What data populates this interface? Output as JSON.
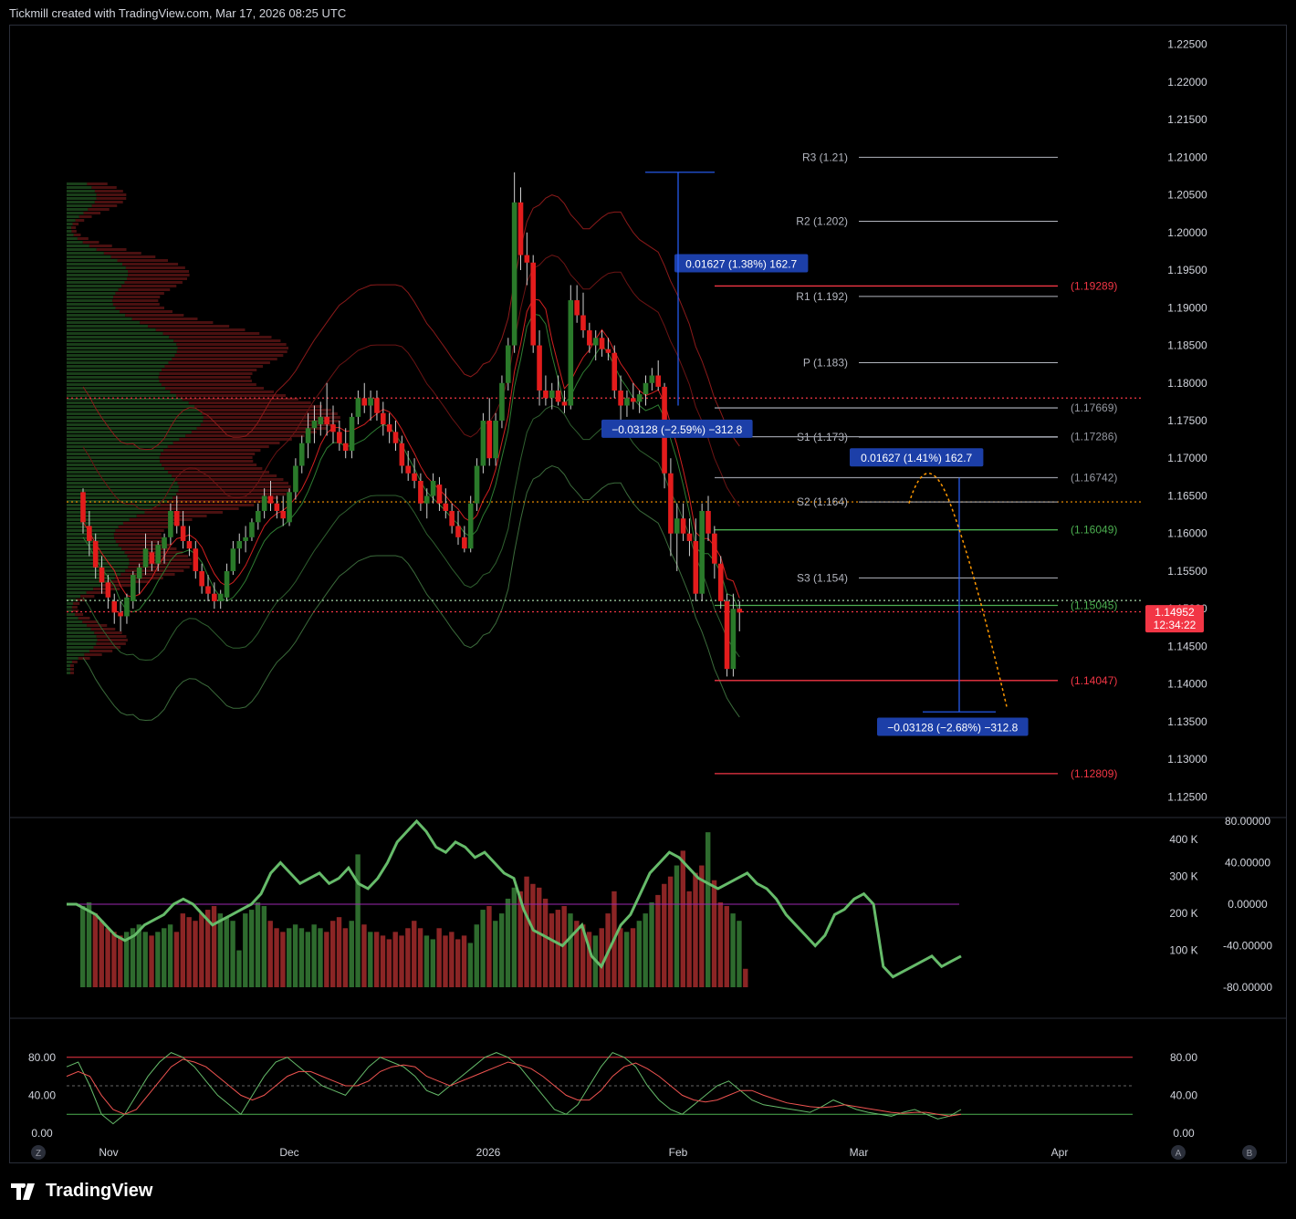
{
  "header": {
    "caption": "Tickmill created with TradingView.com, Mar 17, 2026 08:25 UTC"
  },
  "brand": {
    "name": "TradingView"
  },
  "colors": {
    "up": "#2a7a2a",
    "down": "#e31c1c",
    "bg": "#000000",
    "grid": "#1a1a1a",
    "measure": "#1c3fa8"
  },
  "icons": [
    "tradingview-logo-icon",
    "z-button-icon",
    "a-button-icon",
    "b-button-icon"
  ],
  "bottom_buttons": {
    "left": "Z",
    "a": "A",
    "b": "B"
  },
  "chart_data": [
    {
      "type": "candlestick",
      "symbol_panel": "main",
      "yticks": [
        "1.22500",
        "1.22000",
        "1.21500",
        "1.21000",
        "1.20500",
        "1.20000",
        "1.19500",
        "1.19000",
        "1.18500",
        "1.18000",
        "1.17500",
        "1.17000",
        "1.16500",
        "1.16000",
        "1.15500",
        "1.15000",
        "1.14500",
        "1.14000",
        "1.13500",
        "1.13000",
        "1.12500"
      ],
      "ylim": [
        1.1225,
        1.2275
      ],
      "xticks": [
        "Nov",
        "Dec",
        "2026",
        "Feb",
        "Mar",
        "Apr"
      ],
      "last_price": "1.14952",
      "countdown": "12:34:22",
      "candles": [
        [
          1.1655,
          1.166,
          1.16,
          1.1615
        ],
        [
          1.161,
          1.163,
          1.157,
          1.159
        ],
        [
          1.159,
          1.16,
          1.154,
          1.1555
        ],
        [
          1.1555,
          1.157,
          1.152,
          1.1535
        ],
        [
          1.1535,
          1.1545,
          1.15,
          1.1515
        ],
        [
          1.151,
          1.152,
          1.148,
          1.1495
        ],
        [
          1.1495,
          1.151,
          1.147,
          1.149
        ],
        [
          1.149,
          1.152,
          1.148,
          1.1515
        ],
        [
          1.151,
          1.155,
          1.15,
          1.1545
        ],
        [
          1.154,
          1.156,
          1.152,
          1.1555
        ],
        [
          1.1555,
          1.16,
          1.1545,
          1.158
        ],
        [
          1.1575,
          1.159,
          1.155,
          1.156
        ],
        [
          1.156,
          1.159,
          1.155,
          1.1585
        ],
        [
          1.158,
          1.16,
          1.156,
          1.1595
        ],
        [
          1.1595,
          1.164,
          1.1585,
          1.163
        ],
        [
          1.163,
          1.165,
          1.16,
          1.161
        ],
        [
          1.161,
          1.163,
          1.158,
          1.159
        ],
        [
          1.159,
          1.161,
          1.157,
          1.158
        ],
        [
          1.158,
          1.159,
          1.154,
          1.155
        ],
        [
          1.155,
          1.156,
          1.152,
          1.153
        ],
        [
          1.153,
          1.1545,
          1.151,
          1.152
        ],
        [
          1.152,
          1.1535,
          1.15,
          1.151
        ],
        [
          1.151,
          1.1525,
          1.15,
          1.152
        ],
        [
          1.1515,
          1.156,
          1.151,
          1.155
        ],
        [
          1.155,
          1.159,
          1.1545,
          1.158
        ],
        [
          1.158,
          1.16,
          1.156,
          1.159
        ],
        [
          1.159,
          1.161,
          1.1575,
          1.1595
        ],
        [
          1.1595,
          1.162,
          1.159,
          1.1615
        ],
        [
          1.1615,
          1.164,
          1.1605,
          1.163
        ],
        [
          1.163,
          1.166,
          1.162,
          1.165
        ],
        [
          1.165,
          1.167,
          1.163,
          1.164
        ],
        [
          1.164,
          1.165,
          1.162,
          1.163
        ],
        [
          1.163,
          1.165,
          1.161,
          1.162
        ],
        [
          1.1615,
          1.166,
          1.161,
          1.1655
        ],
        [
          1.1655,
          1.17,
          1.1645,
          1.169
        ],
        [
          1.169,
          1.173,
          1.168,
          1.172
        ],
        [
          1.172,
          1.176,
          1.17,
          1.174
        ],
        [
          1.174,
          1.177,
          1.172,
          1.175
        ],
        [
          1.1745,
          1.1775,
          1.173,
          1.1755
        ],
        [
          1.1755,
          1.18,
          1.173,
          1.1745
        ],
        [
          1.1745,
          1.177,
          1.172,
          1.1735
        ],
        [
          1.1735,
          1.175,
          1.171,
          1.172
        ],
        [
          1.172,
          1.174,
          1.17,
          1.171
        ],
        [
          1.171,
          1.176,
          1.17,
          1.1755
        ],
        [
          1.1755,
          1.179,
          1.1745,
          1.178
        ],
        [
          1.178,
          1.18,
          1.176,
          1.177
        ],
        [
          1.177,
          1.179,
          1.175,
          1.178
        ],
        [
          1.178,
          1.179,
          1.175,
          1.176
        ],
        [
          1.176,
          1.1775,
          1.173,
          1.1745
        ],
        [
          1.1745,
          1.176,
          1.172,
          1.1735
        ],
        [
          1.1735,
          1.175,
          1.171,
          1.172
        ],
        [
          1.172,
          1.173,
          1.168,
          1.169
        ],
        [
          1.169,
          1.171,
          1.167,
          1.168
        ],
        [
          1.168,
          1.17,
          1.166,
          1.167
        ],
        [
          1.167,
          1.168,
          1.163,
          1.164
        ],
        [
          1.164,
          1.166,
          1.162,
          1.165
        ],
        [
          1.165,
          1.168,
          1.164,
          1.167
        ],
        [
          1.1665,
          1.1675,
          1.163,
          1.164
        ],
        [
          1.164,
          1.166,
          1.162,
          1.163
        ],
        [
          1.163,
          1.164,
          1.16,
          1.161
        ],
        [
          1.161,
          1.163,
          1.1585,
          1.1595
        ],
        [
          1.1595,
          1.161,
          1.1575,
          1.158
        ],
        [
          1.158,
          1.165,
          1.1575,
          1.164
        ],
        [
          1.164,
          1.17,
          1.163,
          1.169
        ],
        [
          1.169,
          1.176,
          1.168,
          1.175
        ],
        [
          1.175,
          1.178,
          1.169,
          1.17
        ],
        [
          1.17,
          1.176,
          1.169,
          1.175
        ],
        [
          1.175,
          1.181,
          1.174,
          1.18
        ],
        [
          1.18,
          1.186,
          1.179,
          1.185
        ],
        [
          1.185,
          1.208,
          1.184,
          1.204
        ],
        [
          1.204,
          1.206,
          1.195,
          1.197
        ],
        [
          1.197,
          1.2,
          1.193,
          1.196
        ],
        [
          1.196,
          1.197,
          1.184,
          1.185
        ],
        [
          1.185,
          1.187,
          1.177,
          1.179
        ],
        [
          1.179,
          1.181,
          1.177,
          1.178
        ],
        [
          1.178,
          1.18,
          1.1765,
          1.179
        ],
        [
          1.179,
          1.181,
          1.177,
          1.1775
        ],
        [
          1.1775,
          1.179,
          1.176,
          1.177
        ],
        [
          1.177,
          1.193,
          1.1765,
          1.191
        ],
        [
          1.191,
          1.193,
          1.188,
          1.189
        ],
        [
          1.189,
          1.192,
          1.186,
          1.187
        ],
        [
          1.187,
          1.188,
          1.184,
          1.185
        ],
        [
          1.185,
          1.187,
          1.183,
          1.186
        ],
        [
          1.186,
          1.187,
          1.1835,
          1.1845
        ],
        [
          1.1845,
          1.186,
          1.183,
          1.184
        ],
        [
          1.184,
          1.185,
          1.178,
          1.179
        ],
        [
          1.179,
          1.181,
          1.175,
          1.177
        ],
        [
          1.177,
          1.179,
          1.1755,
          1.178
        ],
        [
          1.178,
          1.18,
          1.1765,
          1.1775
        ],
        [
          1.1775,
          1.179,
          1.176,
          1.1785
        ],
        [
          1.1785,
          1.181,
          1.177,
          1.18
        ],
        [
          1.18,
          1.182,
          1.179,
          1.181
        ],
        [
          1.181,
          1.183,
          1.179,
          1.1795
        ],
        [
          1.1795,
          1.18,
          1.166,
          1.168
        ],
        [
          1.168,
          1.17,
          1.157,
          1.16
        ],
        [
          1.16,
          1.164,
          1.155,
          1.162
        ],
        [
          1.162,
          1.164,
          1.159,
          1.16
        ],
        [
          1.16,
          1.162,
          1.157,
          1.159
        ],
        [
          1.159,
          1.162,
          1.151,
          1.152
        ],
        [
          1.152,
          1.164,
          1.151,
          1.163
        ],
        [
          1.163,
          1.165,
          1.159,
          1.16
        ],
        [
          1.16,
          1.161,
          1.154,
          1.156
        ],
        [
          1.156,
          1.157,
          1.15,
          1.151
        ],
        [
          1.151,
          1.152,
          1.141,
          1.142
        ],
        [
          1.142,
          1.152,
          1.141,
          1.15
        ],
        [
          1.15,
          1.151,
          1.147,
          1.1495
        ]
      ],
      "pivots": [
        {
          "label": "R3 (1.21)",
          "value": 1.21
        },
        {
          "label": "R2 (1.202)",
          "value": 1.2015
        },
        {
          "label": "R1 (1.192)",
          "value": 1.1915
        },
        {
          "label": "P (1.183)",
          "value": 1.1827
        },
        {
          "label": "S1 (1.173)",
          "value": 1.1728
        },
        {
          "label": "S2 (1.164)",
          "value": 1.1642
        },
        {
          "label": "S3 (1.154)",
          "value": 1.1541
        }
      ],
      "levels": [
        {
          "label": "(1.19289)",
          "value": 1.19289,
          "color": "#f23645"
        },
        {
          "label": "(1.17669)",
          "value": 1.17669,
          "color": "#9598a1"
        },
        {
          "label": "(1.17286)",
          "value": 1.17286,
          "color": "#9598a1"
        },
        {
          "label": "(1.16742)",
          "value": 1.16742,
          "color": "#9598a1"
        },
        {
          "label": "(1.16049)",
          "value": 1.16049,
          "color": "#4caf50"
        },
        {
          "label": "(1.15045)",
          "value": 1.15045,
          "color": "#4caf50"
        },
        {
          "label": "(1.14047)",
          "value": 1.14047,
          "color": "#f23645"
        },
        {
          "label": "(1.12809)",
          "value": 1.12809,
          "color": "#f23645"
        }
      ],
      "dotted_lines": [
        {
          "value": 1.178,
          "color": "#f23645"
        },
        {
          "value": 1.1642,
          "color": "#ff9800"
        },
        {
          "value": 1.1511,
          "color": "#a5d6a7"
        },
        {
          "value": 1.1496,
          "color": "#f23645"
        }
      ],
      "measures": [
        {
          "label": "0.01627 (1.38%) 162.7",
          "value": 1.1958
        },
        {
          "label": "−0.03128 (−2.59%) −312.8",
          "value": 1.1738
        },
        {
          "label": "0.01627 (1.41%) 162.7",
          "value": 1.17
        },
        {
          "label": "−0.03128 (−2.68%) −312.8",
          "value": 1.1342
        }
      ]
    },
    {
      "type": "bar+line",
      "panel": "volume",
      "volume_ticks": [
        "400 K",
        "300 K",
        "200 K",
        "100 K"
      ],
      "osc_ticks": [
        "80.00000",
        "40.00000",
        "0.00000",
        "-40.00000",
        "-80.00000"
      ],
      "volume": [
        220,
        230,
        200,
        180,
        160,
        150,
        140,
        150,
        160,
        170,
        150,
        140,
        150,
        160,
        170,
        150,
        200,
        190,
        180,
        200,
        210,
        220,
        200,
        190,
        180,
        100,
        200,
        210,
        230,
        220,
        180,
        160,
        150,
        160,
        170,
        160,
        150,
        170,
        160,
        150,
        180,
        190,
        160,
        180,
        360,
        170,
        150,
        150,
        140,
        130,
        150,
        140,
        160,
        180,
        160,
        140,
        130,
        160,
        140,
        150,
        130,
        140,
        120,
        170,
        210,
        220,
        180,
        200,
        240,
        270,
        260,
        300,
        280,
        270,
        240,
        200,
        210,
        220,
        200,
        180,
        170,
        150,
        140,
        160,
        200,
        260,
        160,
        150,
        160,
        180,
        200,
        230,
        250,
        280,
        300,
        330,
        370,
        260,
        310,
        330,
        420,
        290,
        230,
        220,
        200,
        180,
        50
      ],
      "volume_up": [
        true,
        true,
        false,
        false,
        false,
        false,
        false,
        true,
        true,
        true,
        true,
        false,
        true,
        true,
        true,
        false,
        false,
        false,
        false,
        false,
        false,
        false,
        true,
        true,
        true,
        true,
        true,
        true,
        true,
        true,
        false,
        false,
        false,
        true,
        true,
        true,
        true,
        true,
        true,
        false,
        false,
        false,
        false,
        true,
        true,
        false,
        true,
        false,
        false,
        false,
        false,
        false,
        false,
        false,
        false,
        true,
        true,
        false,
        false,
        false,
        false,
        false,
        true,
        true,
        true,
        false,
        true,
        true,
        true,
        true,
        false,
        false,
        false,
        false,
        false,
        false,
        false,
        false,
        true,
        false,
        false,
        false,
        true,
        false,
        false,
        false,
        false,
        true,
        false,
        true,
        true,
        true,
        false,
        false,
        false,
        true,
        false,
        false,
        false,
        false,
        true,
        false,
        false,
        false,
        true,
        true,
        false
      ],
      "oscillator": [
        0,
        0,
        -5,
        -10,
        -20,
        -30,
        -35,
        -30,
        -20,
        -15,
        -10,
        0,
        5,
        0,
        -10,
        -20,
        -15,
        -10,
        -5,
        0,
        10,
        30,
        40,
        30,
        20,
        25,
        30,
        20,
        25,
        35,
        20,
        15,
        25,
        40,
        60,
        70,
        80,
        70,
        55,
        50,
        60,
        55,
        45,
        50,
        40,
        30,
        25,
        -5,
        -25,
        -30,
        -35,
        -40,
        -30,
        -20,
        -50,
        -60,
        -40,
        -20,
        -10,
        10,
        30,
        40,
        50,
        45,
        35,
        25,
        20,
        15,
        20,
        25,
        30,
        20,
        15,
        5,
        -10,
        -20,
        -30,
        -40,
        -30,
        -10,
        -5,
        5,
        10,
        0,
        -60,
        -70,
        -65,
        -60,
        -55,
        -50,
        -60,
        -55,
        -50
      ]
    },
    {
      "type": "line",
      "panel": "stochastic",
      "yticks_left": [
        "80.00",
        "40.00",
        "0.00"
      ],
      "yticks_right": [
        "80.00",
        "40.00",
        "0.00"
      ],
      "upper_band": 80,
      "lower_band": 20,
      "k": [
        70,
        75,
        50,
        20,
        10,
        20,
        40,
        60,
        75,
        85,
        80,
        70,
        55,
        40,
        30,
        20,
        40,
        60,
        75,
        80,
        70,
        60,
        50,
        45,
        40,
        55,
        70,
        80,
        75,
        70,
        60,
        45,
        40,
        50,
        60,
        70,
        80,
        85,
        80,
        70,
        55,
        40,
        25,
        20,
        30,
        50,
        70,
        85,
        80,
        70,
        50,
        35,
        25,
        20,
        30,
        40,
        50,
        55,
        45,
        35,
        30,
        28,
        26,
        24,
        22,
        28,
        35,
        30,
        25,
        22,
        20,
        18,
        22,
        25,
        20,
        15,
        18,
        25
      ],
      "d": [
        60,
        65,
        60,
        40,
        25,
        20,
        25,
        40,
        55,
        70,
        78,
        75,
        70,
        60,
        50,
        40,
        35,
        40,
        50,
        60,
        65,
        65,
        60,
        55,
        50,
        50,
        55,
        65,
        70,
        72,
        70,
        60,
        55,
        50,
        55,
        60,
        65,
        70,
        75,
        72,
        68,
        60,
        50,
        40,
        35,
        35,
        45,
        60,
        70,
        74,
        68,
        60,
        50,
        40,
        35,
        33,
        35,
        40,
        45,
        45,
        40,
        36,
        32,
        30,
        28,
        27,
        28,
        30,
        28,
        26,
        24,
        22,
        21,
        22,
        22,
        20,
        18,
        20
      ]
    }
  ]
}
